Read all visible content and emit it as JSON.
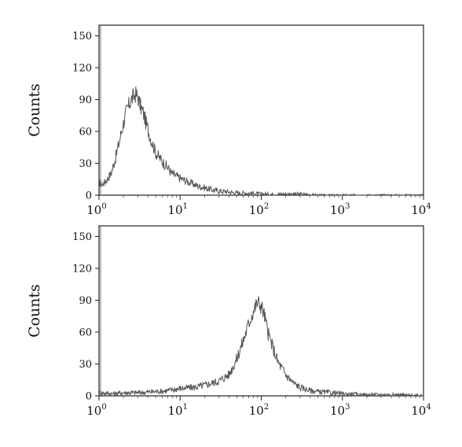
{
  "chart_data": [
    {
      "type": "line",
      "xscale": "log",
      "xlim": [
        1,
        10000
      ],
      "ylim": [
        0,
        160
      ],
      "ylabel": "Counts",
      "xlabel": "",
      "grid": false,
      "yticks": [
        "0",
        "30",
        "60",
        "90",
        "120",
        "150"
      ],
      "xticks": [
        {
          "base": "10",
          "exp": "0"
        },
        {
          "base": "10",
          "exp": "1"
        },
        {
          "base": "10",
          "exp": "2"
        },
        {
          "base": "10",
          "exp": "3"
        },
        {
          "base": "10",
          "exp": "4"
        }
      ],
      "series": [
        {
          "color": "#555555",
          "x": [
            1.0,
            1.1,
            1.2,
            1.4,
            1.6,
            1.8,
            2.0,
            2.2,
            2.5,
            2.8,
            3.0,
            3.2,
            3.5,
            4.0,
            4.5,
            5.0,
            6.0,
            7.0,
            8.0,
            10,
            13,
            16,
            20,
            25,
            30,
            40,
            50,
            70,
            100,
            150,
            200,
            300,
            500,
            1000,
            2000,
            10000
          ],
          "y": [
            12,
            10,
            13,
            20,
            35,
            52,
            68,
            80,
            90,
            95,
            93,
            85,
            78,
            62,
            50,
            40,
            32,
            26,
            20,
            16,
            12,
            9,
            7,
            5,
            4,
            3,
            2,
            2,
            1,
            1,
            1,
            1,
            0,
            0,
            0,
            0
          ]
        }
      ]
    },
    {
      "type": "line",
      "xscale": "log",
      "xlim": [
        1,
        10000
      ],
      "ylim": [
        0,
        160
      ],
      "ylabel": "Counts",
      "xlabel": "",
      "grid": false,
      "yticks": [
        "0",
        "30",
        "60",
        "90",
        "120",
        "150"
      ],
      "xticks": [
        {
          "base": "10",
          "exp": "0"
        },
        {
          "base": "10",
          "exp": "1"
        },
        {
          "base": "10",
          "exp": "2"
        },
        {
          "base": "10",
          "exp": "3"
        },
        {
          "base": "10",
          "exp": "4"
        }
      ],
      "series": [
        {
          "color": "#555555",
          "x": [
            1.0,
            1.5,
            2,
            3,
            5,
            7,
            10,
            15,
            20,
            30,
            40,
            50,
            60,
            70,
            80,
            90,
            100,
            110,
            120,
            140,
            160,
            200,
            250,
            300,
            400,
            500,
            700,
            1000,
            2000,
            5000,
            10000
          ],
          "y": [
            3,
            2,
            3,
            3,
            4,
            5,
            7,
            8,
            10,
            14,
            20,
            35,
            52,
            68,
            80,
            88,
            85,
            75,
            60,
            45,
            32,
            20,
            12,
            8,
            5,
            4,
            3,
            2,
            1,
            1,
            0
          ]
        }
      ]
    }
  ]
}
